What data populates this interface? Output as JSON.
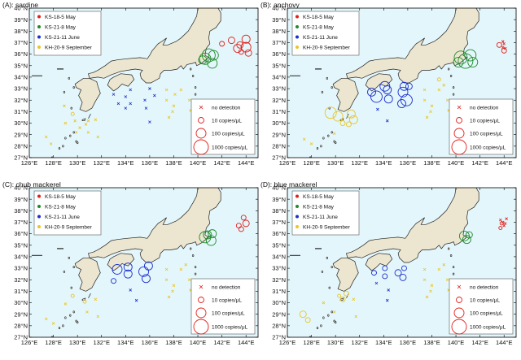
{
  "colors": {
    "ocean": "#e3f6fb",
    "land": "#ece6d0",
    "coast": "#222222",
    "ks18": "#e0201c",
    "ks21_8": "#1f8a2a",
    "ks21_11": "#1c2fd0",
    "kh20": "#e9c42a"
  },
  "axes": {
    "lon_ticks": [
      "126°E",
      "128°E",
      "130°E",
      "132°E",
      "134°E",
      "136°E",
      "138°E",
      "140°E",
      "142°E",
      "144°E"
    ],
    "lat_ticks": [
      "27°N",
      "28°N",
      "29°N",
      "30°N",
      "31°N",
      "32°N",
      "33°N",
      "34°N",
      "35°N",
      "36°N",
      "37°N",
      "38°N",
      "39°N",
      "40°N"
    ],
    "lon_range": [
      126,
      145
    ],
    "lat_range": [
      27,
      40
    ]
  },
  "legends": {
    "cruises": [
      {
        "label": "KS-18-5 May",
        "color_key": "ks18"
      },
      {
        "label": "KS-21-8 May",
        "color_key": "ks21_8"
      },
      {
        "label": "KS-21-11 June",
        "color_key": "ks21_11"
      },
      {
        "label": "KH-20-9 September",
        "color_key": "kh20"
      }
    ],
    "sizes": [
      {
        "label": "no detection",
        "symbol": "x"
      },
      {
        "label": "10 copies/μL",
        "radius": 3.5
      },
      {
        "label": "100 copies/μL",
        "radius": 6
      },
      {
        "label": "1000 copies/μL",
        "radius": 9
      }
    ]
  },
  "panels": [
    {
      "title": "(A): sardine",
      "detections": {
        "ks18": [
          [
            142.0,
            36.9,
            3
          ],
          [
            142.8,
            37.2,
            4
          ],
          [
            143.5,
            36.8,
            4
          ],
          [
            144.0,
            37.3,
            5
          ],
          [
            144.0,
            36.6,
            6
          ],
          [
            143.3,
            36.5,
            5
          ],
          [
            144.2,
            36.1,
            4
          ],
          [
            143.6,
            36.2,
            3
          ]
        ],
        "ks21_8": [
          [
            140.6,
            35.6,
            7
          ],
          [
            140.9,
            35.9,
            8
          ],
          [
            141.2,
            35.2,
            6
          ],
          [
            140.4,
            35.5,
            5
          ],
          [
            141.3,
            35.9,
            6
          ]
        ],
        "ks21_11": [],
        "kh20": [
          [
            129.6,
            30.8,
            2
          ]
        ]
      },
      "nodetect": {
        "ks18": [],
        "ks21_8": [],
        "ks21_11": [
          [
            133.0,
            32.5
          ],
          [
            133.4,
            31.7
          ],
          [
            134.0,
            32.3
          ],
          [
            134.0,
            31.3
          ],
          [
            134.4,
            32.9
          ],
          [
            135.6,
            32.0
          ],
          [
            135.7,
            31.3
          ],
          [
            136.0,
            33.0
          ],
          [
            136.4,
            32.4
          ],
          [
            136.0,
            30.1
          ],
          [
            134.4,
            31.7
          ]
        ],
        "kh20": [
          [
            129.0,
            30.0
          ],
          [
            129.8,
            30.2
          ],
          [
            130.2,
            29.6
          ],
          [
            130.9,
            29.2
          ],
          [
            131.5,
            30.3
          ],
          [
            131.7,
            28.8
          ],
          [
            130.9,
            30.2
          ],
          [
            127.4,
            28.8
          ],
          [
            127.8,
            28.2
          ],
          [
            128.9,
            31.5
          ],
          [
            130.7,
            29.9
          ],
          [
            137.4,
            32.9
          ],
          [
            137.4,
            32.0
          ],
          [
            138.1,
            32.5
          ],
          [
            138.0,
            31.5
          ],
          [
            137.9,
            31.0
          ],
          [
            137.6,
            30.5
          ],
          [
            138.6,
            32.9
          ],
          [
            139.3,
            32.0
          ],
          [
            139.4,
            31.1
          ],
          [
            139.8,
            30.3
          ],
          [
            140.3,
            29.9
          ],
          [
            129.9,
            29.2
          ]
        ]
      }
    },
    {
      "title": "(B): anchovy",
      "detections": {
        "ks18": [
          [
            143.6,
            36.8,
            3
          ],
          [
            144.0,
            36.3,
            3
          ]
        ],
        "ks21_8": [
          [
            140.4,
            35.7,
            8
          ],
          [
            140.8,
            35.4,
            9
          ],
          [
            141.2,
            35.9,
            7
          ],
          [
            140.2,
            35.3,
            6
          ],
          [
            141.4,
            35.3,
            6
          ]
        ],
        "ks21_11": [
          [
            133.0,
            32.7,
            5
          ],
          [
            133.4,
            32.3,
            7
          ],
          [
            134.1,
            33.2,
            6
          ],
          [
            134.4,
            32.1,
            5
          ],
          [
            135.6,
            32.7,
            6
          ],
          [
            135.9,
            32.0,
            7
          ],
          [
            135.5,
            31.7,
            5
          ],
          [
            136.1,
            33.2,
            4
          ],
          [
            134.3,
            32.9,
            5
          ],
          [
            135.7,
            33.2,
            5
          ]
        ],
        "kh20": [
          [
            129.6,
            30.9,
            7
          ],
          [
            130.2,
            30.6,
            6
          ],
          [
            131.3,
            30.8,
            5
          ],
          [
            131.5,
            30.3,
            5
          ],
          [
            131.1,
            29.9,
            3
          ],
          [
            130.6,
            30.0,
            3
          ],
          [
            138.6,
            33.8,
            2
          ]
        ]
      },
      "nodetect": {
        "ks18": [
          [
            143.9,
            37.1
          ],
          [
            144.0,
            36.9
          ],
          [
            143.9,
            36.6
          ],
          [
            144.1,
            36.5
          ]
        ],
        "ks21_8": [],
        "ks21_11": [
          [
            133.5,
            31.2
          ],
          [
            134.3,
            30.2
          ]
        ],
        "kh20": [
          [
            127.4,
            28.6
          ],
          [
            128.0,
            28.2
          ],
          [
            129.9,
            29.1
          ],
          [
            137.4,
            32.9
          ],
          [
            137.4,
            32.0
          ],
          [
            138.0,
            31.5
          ],
          [
            137.9,
            31.0
          ],
          [
            137.6,
            30.5
          ],
          [
            138.6,
            32.9
          ],
          [
            139.3,
            32.0
          ],
          [
            139.4,
            31.1
          ],
          [
            139.8,
            30.3
          ],
          [
            140.3,
            29.9
          ],
          [
            139.0,
            33.3
          ]
        ]
      }
    },
    {
      "title": "(C): chub mackerel",
      "detections": {
        "ks18": [
          [
            143.4,
            36.7,
            3
          ],
          [
            144.0,
            36.9,
            4
          ],
          [
            143.8,
            37.4,
            3
          ],
          [
            143.6,
            36.4,
            3
          ]
        ],
        "ks21_8": [
          [
            140.6,
            35.7,
            7
          ],
          [
            141.1,
            35.4,
            6
          ],
          [
            140.8,
            35.9,
            5
          ],
          [
            141.2,
            36.0,
            5
          ]
        ],
        "ks21_11": [
          [
            133.3,
            32.9,
            6
          ],
          [
            134.2,
            32.5,
            5
          ],
          [
            134.2,
            33.1,
            5
          ],
          [
            135.5,
            32.7,
            6
          ],
          [
            135.7,
            32.1,
            5
          ],
          [
            135.9,
            33.2,
            5
          ],
          [
            133.0,
            31.9,
            3
          ]
        ],
        "kh20": [
          [
            129.6,
            30.6,
            2
          ],
          [
            130.6,
            30.1,
            2
          ]
        ]
      },
      "nodetect": {
        "ks18": [],
        "ks21_8": [],
        "ks21_11": [
          [
            134.4,
            31.1
          ],
          [
            134.9,
            30.2
          ]
        ],
        "kh20": [
          [
            127.4,
            28.6
          ],
          [
            128.0,
            28.2
          ],
          [
            129.0,
            29.9
          ],
          [
            130.8,
            29.2
          ],
          [
            131.5,
            30.3
          ],
          [
            131.7,
            28.8
          ],
          [
            137.4,
            32.9
          ],
          [
            137.4,
            32.0
          ],
          [
            138.0,
            31.5
          ],
          [
            137.9,
            31.0
          ],
          [
            137.6,
            30.5
          ],
          [
            138.6,
            32.9
          ],
          [
            139.3,
            32.0
          ],
          [
            139.4,
            31.1
          ],
          [
            139.8,
            30.3
          ],
          [
            140.3,
            29.9
          ],
          [
            139.0,
            33.3
          ]
        ]
      }
    },
    {
      "title": "(D): blue mackerel",
      "detections": {
        "ks18": [
          [
            143.8,
            36.9,
            2
          ],
          [
            143.7,
            36.5,
            2
          ]
        ],
        "ks21_8": [
          [
            140.7,
            35.8,
            6
          ],
          [
            140.9,
            35.5,
            5
          ],
          [
            141.1,
            35.9,
            4
          ]
        ],
        "ks21_11": [
          [
            133.2,
            32.6,
            3
          ],
          [
            134.1,
            32.3,
            3
          ],
          [
            134.1,
            33.0,
            3
          ],
          [
            135.2,
            32.6,
            4
          ],
          [
            135.6,
            32.2,
            4
          ],
          [
            135.7,
            33.0,
            3
          ]
        ],
        "kh20": [
          [
            127.3,
            29.0,
            4
          ],
          [
            127.7,
            28.5,
            3
          ],
          [
            130.9,
            30.8,
            3
          ],
          [
            130.6,
            30.3,
            3
          ],
          [
            130.3,
            30.6,
            2
          ]
        ]
      },
      "nodetect": {
        "ks18": [
          [
            143.7,
            37.2
          ],
          [
            143.9,
            37.0
          ],
          [
            144.0,
            36.7
          ],
          [
            144.1,
            36.9
          ],
          [
            144.2,
            37.3
          ]
        ],
        "ks21_8": [],
        "ks21_11": [
          [
            134.4,
            31.1
          ],
          [
            134.3,
            30.2
          ],
          [
            133.4,
            31.7
          ]
        ],
        "kh20": [
          [
            129.0,
            30.0
          ],
          [
            129.9,
            29.2
          ],
          [
            131.5,
            30.3
          ],
          [
            131.7,
            28.8
          ],
          [
            137.4,
            32.9
          ],
          [
            137.4,
            32.0
          ],
          [
            138.0,
            31.5
          ],
          [
            137.9,
            31.0
          ],
          [
            137.6,
            30.5
          ],
          [
            138.6,
            32.9
          ],
          [
            139.3,
            32.0
          ],
          [
            139.4,
            31.1
          ],
          [
            139.8,
            30.3
          ],
          [
            140.3,
            29.9
          ],
          [
            139.0,
            33.3
          ]
        ]
      }
    }
  ]
}
